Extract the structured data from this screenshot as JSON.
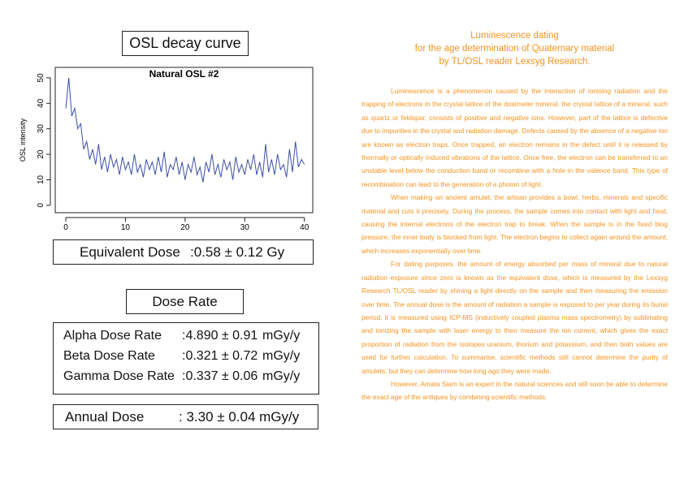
{
  "chart_data": {
    "type": "line",
    "title": "Natural OSL #2",
    "ylabel": "OSL intensity",
    "x": [
      0,
      0.5,
      1,
      1.5,
      2,
      2.5,
      3,
      3.5,
      4,
      4.5,
      5,
      5.5,
      6,
      6.5,
      7,
      7.5,
      8,
      8.5,
      9,
      9.5,
      10,
      10.5,
      11,
      11.5,
      12,
      12.5,
      13,
      13.5,
      14,
      14.5,
      15,
      15.5,
      16,
      16.5,
      17,
      17.5,
      18,
      18.5,
      19,
      19.5,
      20,
      20.5,
      21,
      21.5,
      22,
      22.5,
      23,
      23.5,
      24,
      24.5,
      25,
      25.5,
      26,
      26.5,
      27,
      27.5,
      28,
      28.5,
      29,
      29.5,
      30,
      30.5,
      31,
      31.5,
      32,
      32.5,
      33,
      33.5,
      34,
      34.5,
      35,
      35.5,
      36,
      36.5,
      37,
      37.5,
      38,
      38.5,
      39,
      39.5,
      40
    ],
    "values": [
      38,
      50,
      35,
      38,
      30,
      32,
      22,
      25,
      18,
      22,
      16,
      24,
      14,
      19,
      13,
      20,
      15,
      18,
      12,
      19,
      14,
      17,
      12,
      20,
      13,
      16,
      11,
      18,
      14,
      17,
      12,
      19,
      13,
      21,
      11,
      16,
      14,
      19,
      12,
      17,
      10,
      16,
      13,
      19,
      12,
      15,
      9,
      17,
      13,
      20,
      12,
      16,
      11,
      18,
      14,
      17,
      10,
      19,
      13,
      16,
      12,
      18,
      14,
      20,
      12,
      17,
      11,
      24,
      13,
      18,
      12,
      20,
      14,
      16,
      11,
      22,
      13,
      25,
      15,
      18,
      16
    ],
    "color": "#3a4fa8",
    "xlim": [
      -1.77,
      41.4
    ],
    "ylim": [
      -2.9,
      54.1
    ],
    "xticks": [
      0,
      10,
      20,
      30,
      40
    ],
    "yticks": [
      0,
      10,
      20,
      30,
      40,
      50
    ]
  },
  "heading": "OSL decay curve",
  "equivalent": {
    "label": "Equivalent Dose",
    "value": ":0.58 ± 0.12 Gy"
  },
  "dose_rate": {
    "heading": "Dose Rate",
    "rows": [
      [
        "Alpha Dose Rate",
        ":4.890 ± 0.91",
        "mGy/y"
      ],
      [
        "Beta Dose Rate",
        ":0.321 ± 0.72",
        "mGy/y"
      ],
      [
        "Gamma Dose Rate",
        ":0.337 ± 0.06",
        "mGy/y"
      ]
    ]
  },
  "annual": {
    "label": "Annual Dose",
    "value": ": 3.30 ± 0.04 mGy/y"
  },
  "article": {
    "title": [
      "Luminescence dating",
      "for the age determination of Quaternary material",
      "by TL/OSL reader Lexsyg Research."
    ],
    "paragraphs": [
      "Luminescence is a phenomenon caused by the interaction of ionising radiation and the trapping of electrons in the crystal lattice of the dosimeter mineral. the crystal lattice of a mineral, such as quartz or feldspar, consists of positive and negative ions. However, part of the lattice is defective due to impurities in the crystal and radiation damage. Defects caused by the absence of a negative ion are known as electron traps. Once trapped, an electron remains in the defect until it is released by thermally or optically induced vibrations of the lattice. Once free, the electron can be transferred to an unstable level below the conduction band or recombine with a hole in the valence band. This type of recombination can lead to the generation of a photon of light.",
      "When making an ancient amulet, the artisan provides a bowl, herbs, minerals and specific material and cuts it precisely. During the process, the sample comes into contact with light and heat, causing the internal electrons of the electron trap to break. When the sample is in the fixed blog pressure, the inner body is blocked from light. The electron begins to collect again around the amount, which increases exponentially over time.",
      "For dating purposes, the amount of energy absorbed per mass of mineral due to natural radiation exposure since zero is known as the equivalent dose, which is measured by the Lexsyg Research TL/OSL reader by shining a light directly on the sample and then measuring the emission over time. The annual dose is the amount of radiation a sample is exposed to per year during its burial period. It is measured using ICP-MS (inductively coupled plasma mass spectrometry) by sublimating and ionizing the sample with laser energy to then measure the ion current, which gives the exact proportion of radiation from the isotopes uranium, thorium and potassium, and then both values are used for further calculation. To summarise, scientific methods still cannot determine the purity of amulets, but they can determine how long ago they were made.",
      "However, Amata Siam is an expert in the natural sciences and will soon be able to determine the exact age of the antiques by combining scientific methods."
    ]
  }
}
